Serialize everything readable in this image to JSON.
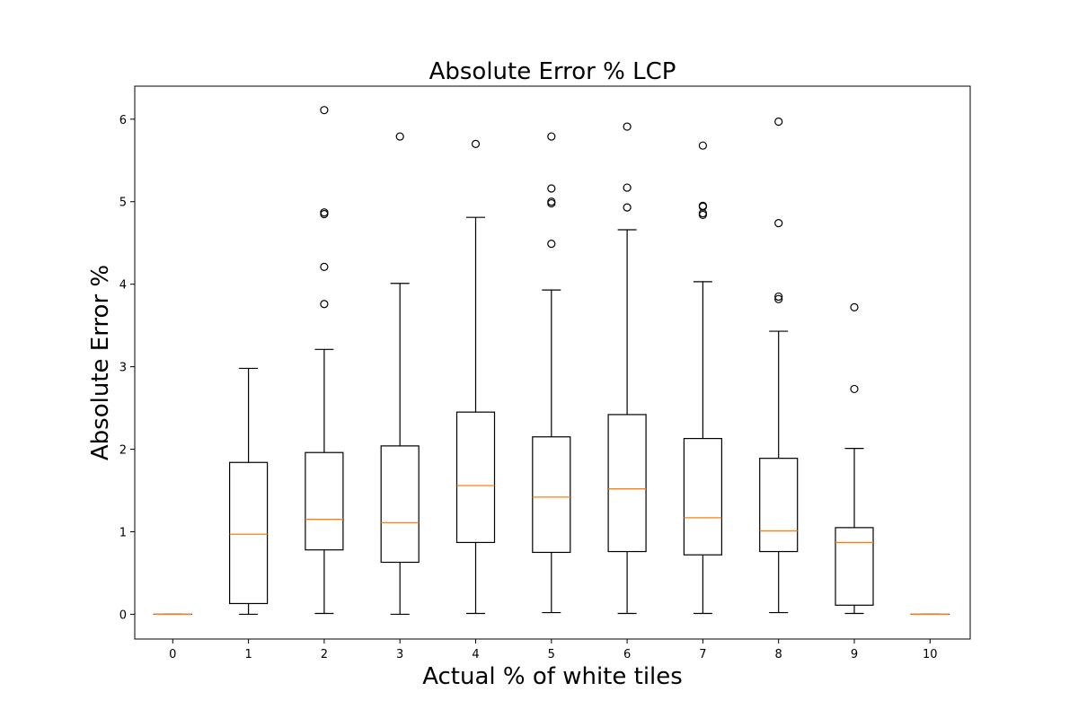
{
  "chart_data": {
    "type": "box",
    "title": "Absolute Error % LCP",
    "xlabel": "Actual % of white tiles",
    "ylabel": "Absolute Error %",
    "ylim": [
      -0.3,
      6.4
    ],
    "yticks": [
      0,
      1,
      2,
      3,
      4,
      5,
      6
    ],
    "grid": false,
    "colors": {
      "box": "#000000",
      "median": "#ff7f0e",
      "outlier": "#000000"
    },
    "boxes": [
      {
        "category": "0",
        "whisker_low": 0.0,
        "q1": 0.0,
        "median": 0.0,
        "q3": 0.0,
        "whisker_high": 0.0,
        "outliers": []
      },
      {
        "category": "1",
        "whisker_low": 0.0,
        "q1": 0.13,
        "median": 0.97,
        "q3": 1.84,
        "whisker_high": 2.98,
        "outliers": []
      },
      {
        "category": "2",
        "whisker_low": 0.01,
        "q1": 0.78,
        "median": 1.15,
        "q3": 1.96,
        "whisker_high": 3.21,
        "outliers": [
          3.76,
          4.21,
          4.85,
          4.87,
          6.11
        ]
      },
      {
        "category": "3",
        "whisker_low": 0.0,
        "q1": 0.63,
        "median": 1.11,
        "q3": 2.04,
        "whisker_high": 4.01,
        "outliers": [
          5.79
        ]
      },
      {
        "category": "4",
        "whisker_low": 0.01,
        "q1": 0.87,
        "median": 1.56,
        "q3": 2.45,
        "whisker_high": 4.81,
        "outliers": [
          5.7
        ]
      },
      {
        "category": "5",
        "whisker_low": 0.02,
        "q1": 0.75,
        "median": 1.42,
        "q3": 2.15,
        "whisker_high": 3.93,
        "outliers": [
          4.49,
          4.98,
          5.0,
          5.16,
          5.79
        ]
      },
      {
        "category": "6",
        "whisker_low": 0.01,
        "q1": 0.76,
        "median": 1.52,
        "q3": 2.42,
        "whisker_high": 4.66,
        "outliers": [
          4.93,
          5.17,
          5.91
        ]
      },
      {
        "category": "7",
        "whisker_low": 0.01,
        "q1": 0.72,
        "median": 1.17,
        "q3": 2.13,
        "whisker_high": 4.03,
        "outliers": [
          4.84,
          4.86,
          4.94,
          4.95,
          5.68
        ]
      },
      {
        "category": "8",
        "whisker_low": 0.02,
        "q1": 0.76,
        "median": 1.01,
        "q3": 1.89,
        "whisker_high": 3.43,
        "outliers": [
          3.82,
          3.85,
          4.74,
          5.97
        ]
      },
      {
        "category": "9",
        "whisker_low": 0.01,
        "q1": 0.11,
        "median": 0.87,
        "q3": 1.05,
        "whisker_high": 2.01,
        "outliers": [
          2.73,
          3.72
        ]
      },
      {
        "category": "10",
        "whisker_low": 0.0,
        "q1": 0.0,
        "median": 0.0,
        "q3": 0.0,
        "whisker_high": 0.0,
        "outliers": []
      }
    ]
  }
}
